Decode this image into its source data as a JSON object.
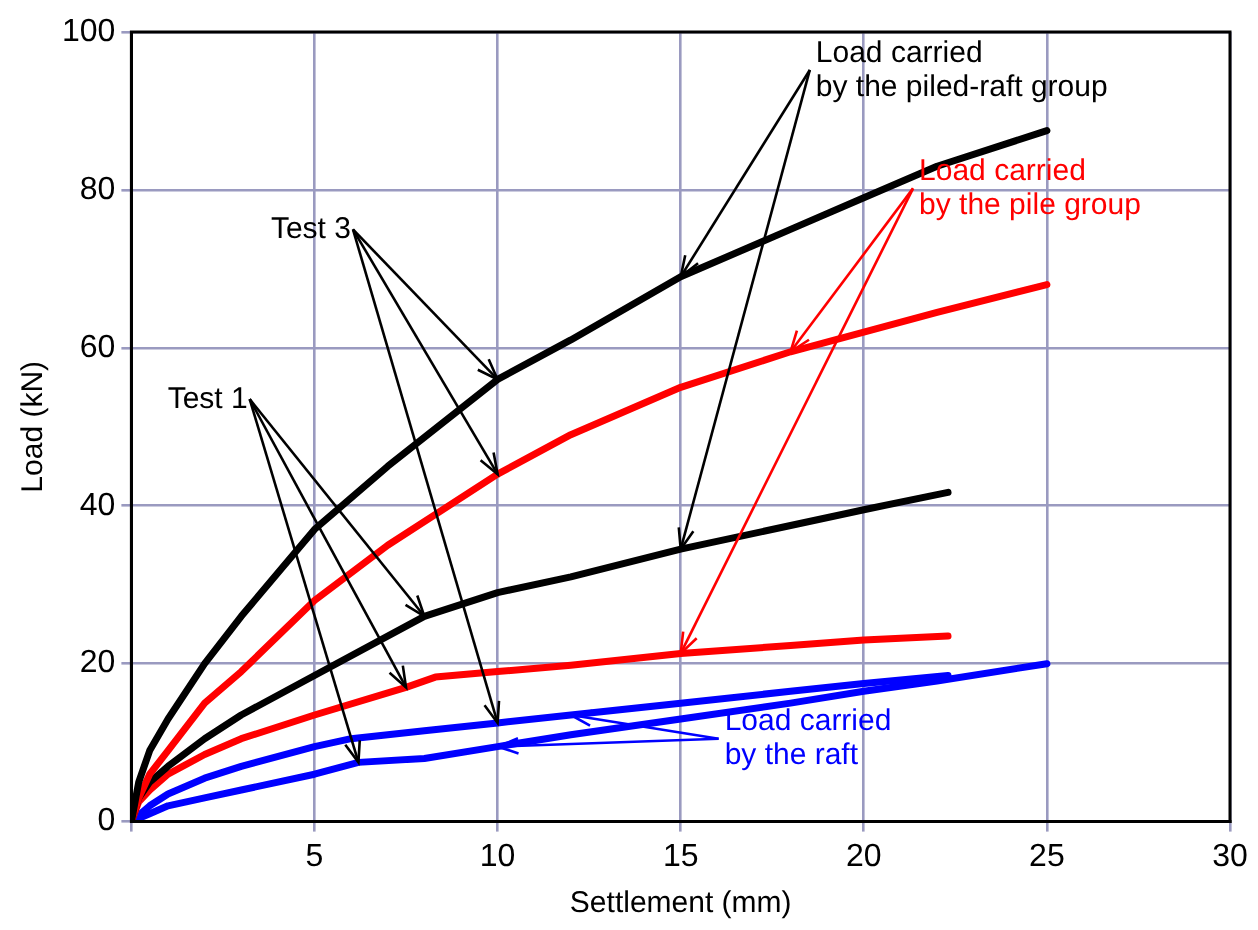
{
  "chart_data": {
    "type": "line",
    "xlabel": "Settlement (mm)",
    "ylabel": "Load (kN)",
    "xlim": [
      0,
      30
    ],
    "xticks": [
      {
        "value": 0,
        "label": null
      },
      5,
      10,
      15,
      20,
      25,
      30
    ],
    "ylim": [
      0,
      100
    ],
    "yticks": [
      0,
      20,
      40,
      60,
      80,
      100
    ],
    "grid": true,
    "legend": false,
    "marker": "none",
    "line_style": "solid",
    "series": [
      {
        "color": "#000000",
        "x": [
          0,
          0.2,
          0.5,
          1,
          2,
          3,
          5,
          7,
          10,
          12,
          15,
          18,
          20,
          22,
          25
        ],
        "values": [
          0,
          5,
          9,
          13,
          20,
          26,
          37,
          45,
          56,
          61,
          69,
          75,
          79,
          83,
          87.5
        ]
      },
      {
        "color": "#ff0000",
        "x": [
          0,
          0.2,
          0.5,
          1,
          2,
          3,
          5,
          7,
          10,
          12,
          15,
          18,
          20,
          22,
          25
        ],
        "values": [
          0,
          3,
          6,
          9,
          15,
          19,
          28,
          35,
          44,
          49,
          55,
          59.5,
          62,
          64.5,
          68
        ]
      },
      {
        "color": "#000000",
        "x": [
          0,
          0.2,
          0.5,
          1,
          2,
          3,
          5,
          8,
          10,
          12,
          15,
          18,
          20,
          22.3
        ],
        "values": [
          0,
          3,
          5,
          7,
          10.5,
          13.5,
          18.5,
          26,
          29,
          31,
          34.5,
          37.5,
          39.5,
          41.7
        ]
      },
      {
        "color": "#ff0000",
        "x": [
          0,
          0.2,
          0.5,
          1,
          2,
          3,
          5,
          7.5,
          8.3,
          10,
          12,
          15,
          18,
          20,
          22.3
        ],
        "values": [
          0,
          2.5,
          4,
          6,
          8.5,
          10.5,
          13.5,
          17,
          18.3,
          19,
          19.8,
          21.3,
          22.3,
          23,
          23.5
        ]
      },
      {
        "color": "#0000ff",
        "x": [
          0,
          0.5,
          1,
          2,
          3,
          5,
          6,
          8,
          10,
          12,
          15,
          18,
          20,
          22.3
        ],
        "values": [
          0,
          2,
          3.5,
          5.5,
          7,
          9.5,
          10.5,
          11.5,
          12.5,
          13.5,
          15,
          16.5,
          17.5,
          18.5
        ]
      },
      {
        "color": "#0000ff",
        "x": [
          0,
          0.5,
          1,
          2,
          3,
          5,
          6.2,
          8,
          10,
          12,
          15,
          18,
          20,
          22,
          25
        ],
        "values": [
          0,
          1,
          2,
          3,
          4,
          6,
          7.5,
          8,
          9.5,
          11,
          13,
          15,
          16.5,
          17.8,
          20
        ]
      }
    ],
    "annotations": [
      {
        "text": "Load carried\nby the piled-raft group",
        "x": 15,
        "y": 69
      },
      {
        "text": "Load carried\nby the pile group",
        "x": 18,
        "y": 59.5
      },
      {
        "text": "Test 3",
        "x": 10,
        "y": 56
      },
      {
        "text": "Test 1",
        "x": 8,
        "y": 26
      },
      {
        "text": "Load carried\nby the raft",
        "x": 12,
        "y": 13.5
      }
    ]
  }
}
